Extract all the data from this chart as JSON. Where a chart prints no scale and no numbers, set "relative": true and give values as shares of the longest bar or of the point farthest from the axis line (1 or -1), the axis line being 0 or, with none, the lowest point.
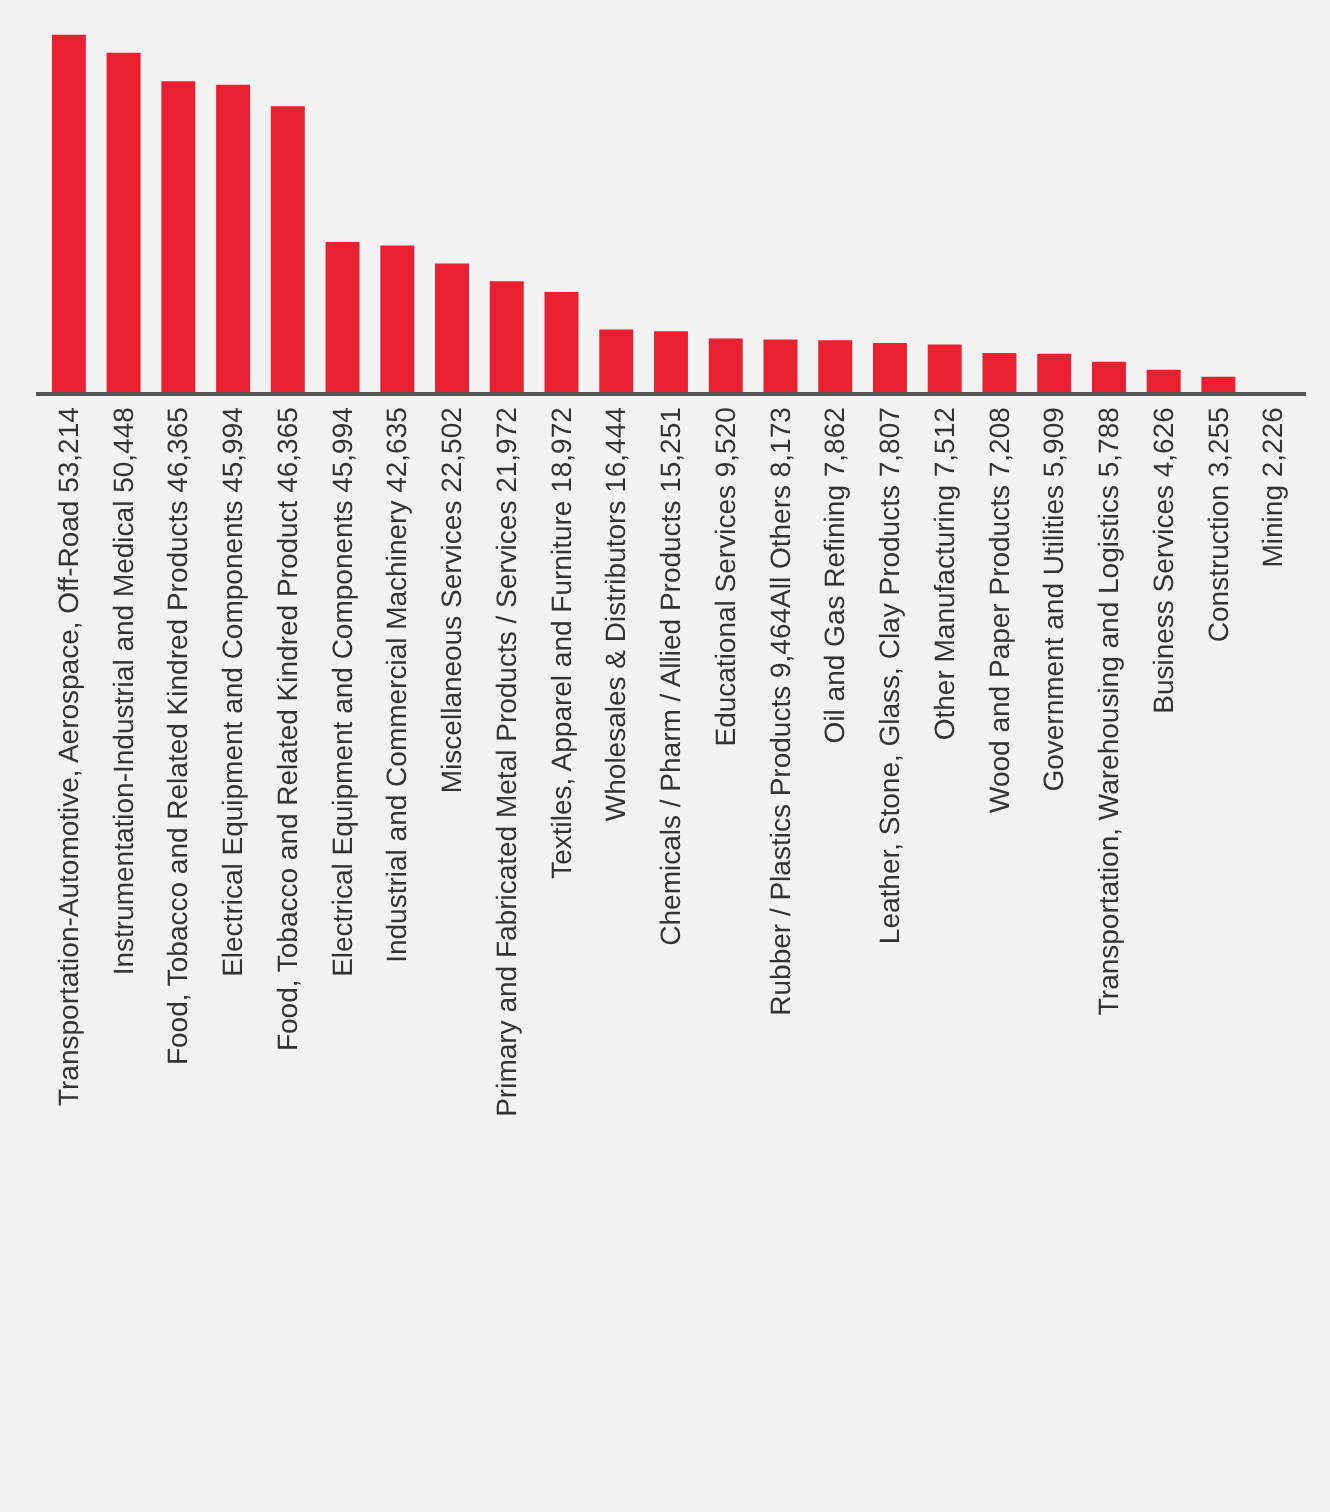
{
  "chart_data": {
    "type": "bar",
    "relative": true,
    "grid": false,
    "legend": false,
    "categories": [
      "Transportation-Automotive, Aerospace, Off-Road 53,214",
      "Instrumentation-Industrial and Medical 50,448",
      "Food, Tobacco and Related Kindred Products 46,365",
      "Electrical Equipment and Components 45,994",
      "Food, Tobacco and Related Kindred Product 46,365",
      "Electrical Equipment and Components 45,994",
      "Industrial and Commercial Machinery 42,635",
      "Miscellaneous Services 22,502",
      "Primary and Fabricated Metal Products / Services 21,972",
      "Textiles, Apparel and Furniture 18,972",
      "Wholesales & Distributors 16,444",
      "Chemicals / Pharm / Allied Products 15,251",
      "Educational Services 9,520",
      "Rubber / Plastics Products 9,464All Others 8,173",
      "Oil and Gas Refining 7,862",
      "Leather, Stone, Glass, Clay Products 7,807",
      "Other Manufacturing 7,512",
      "Wood and Paper Products 7,208",
      "Government and Utilities 5,909",
      "Transportation, Warehousing and Logistics 5,788",
      "Business Services 4,626",
      "Construction 3,255",
      "Mining 2,226"
    ],
    "values": [
      1,
      0.95,
      0.87,
      0.86,
      0.8,
      0.42,
      0.41,
      0.36,
      0.31,
      0.28,
      0.175,
      0.17,
      0.15,
      0.147,
      0.145,
      0.137,
      0.133,
      0.109,
      0.107,
      0.085,
      0.062,
      0.043,
      null
    ],
    "color": "#e8202f"
  }
}
